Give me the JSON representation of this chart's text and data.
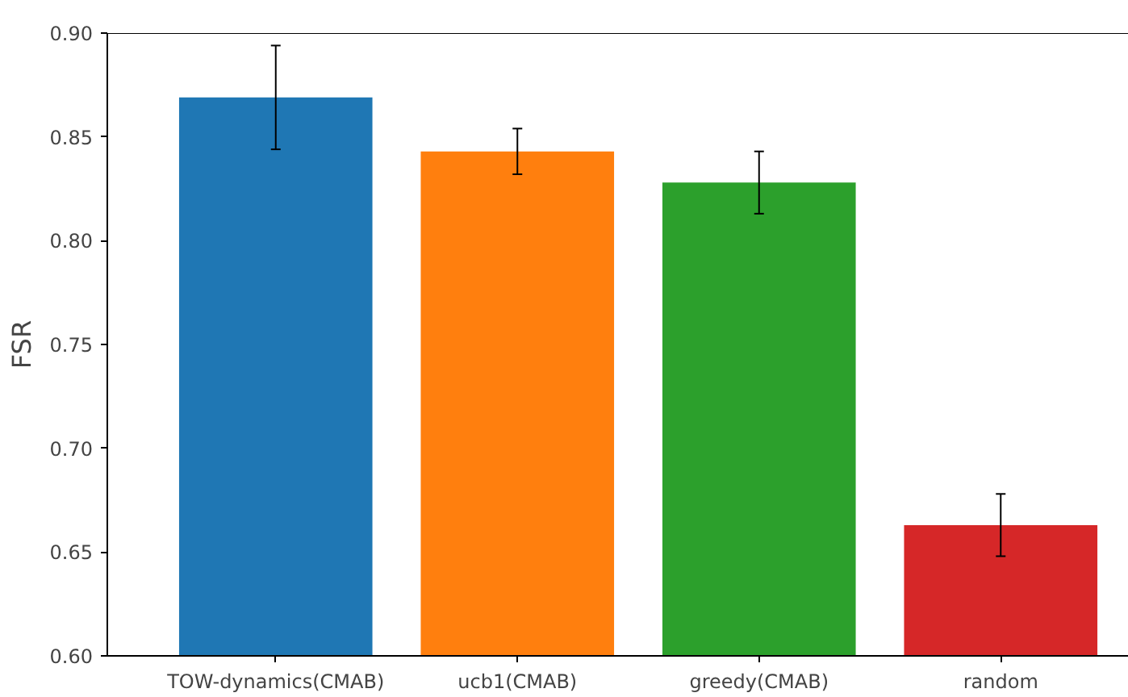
{
  "chart_data": {
    "type": "bar",
    "ylabel": "FSR",
    "categories": [
      "TOW-dynamics(CMAB)",
      "ucb1(CMAB)",
      "greedy(CMAB)",
      "random"
    ],
    "values": [
      0.869,
      0.843,
      0.828,
      0.663
    ],
    "colors": [
      "#1f77b4",
      "#ff7f0e",
      "#2ca02c",
      "#d62728"
    ],
    "errors": [
      0.025,
      0.011,
      0.015,
      0.015
    ],
    "ylim": [
      0.6,
      0.9
    ],
    "yticks": [
      {
        "value": 0.6,
        "label": "0.60"
      },
      {
        "value": 0.65,
        "label": "0.65"
      },
      {
        "value": 0.7,
        "label": "0.70"
      },
      {
        "value": 0.75,
        "label": "0.75"
      },
      {
        "value": 0.8,
        "label": "0.80"
      },
      {
        "value": 0.85,
        "label": "0.85"
      },
      {
        "value": 0.9,
        "label": "0.90"
      }
    ],
    "grid": false
  }
}
